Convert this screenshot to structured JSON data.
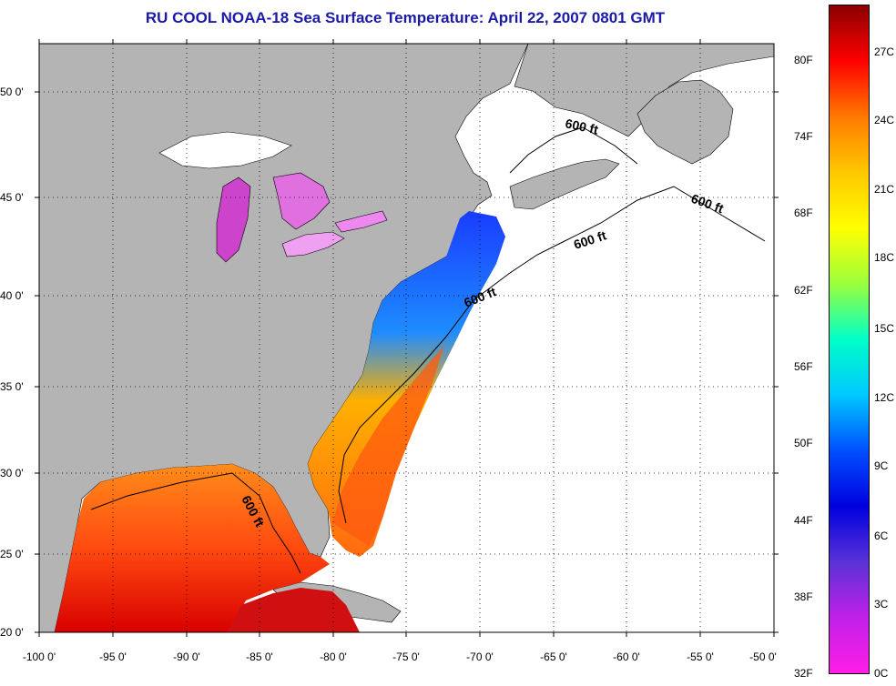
{
  "title": "RU COOL  NOAA-18  Sea Surface Temperature:  April 22, 2007 0801 GMT",
  "latitude_labels": [
    "50 0'",
    "45 0'",
    "40 0'",
    "35 0'",
    "30 0'",
    "25 0'",
    "20 0'"
  ],
  "longitude_labels": [
    "-100 0'",
    "-95 0'",
    "-90 0'",
    "-85 0'",
    "-80 0'",
    "-75 0'",
    "-70 0'",
    "-65 0'",
    "-60 0'",
    "-55 0'",
    "-50 0'"
  ],
  "depth_contour_labels": [
    "600 ft",
    "600 ft",
    "600 ft",
    "600 ft",
    "600 ft"
  ],
  "colorbar": {
    "fahrenheit_labels": [
      "80F",
      "74F",
      "68F",
      "62F",
      "56F",
      "50F",
      "44F",
      "38F",
      "32F"
    ],
    "celsius_labels": [
      "27C",
      "24C",
      "21C",
      "18C",
      "15C",
      "12C",
      "9C",
      "6C",
      "3C",
      "0C"
    ],
    "gradient_top_to_bottom": [
      "#8b0000",
      "#ff0000",
      "#ff7a00",
      "#ffc800",
      "#ffff00",
      "#9cff3c",
      "#00ffc8",
      "#00c8ff",
      "#0050ff",
      "#0000e0",
      "#5a32d6",
      "#c020e8",
      "#ff1ee6"
    ]
  },
  "colors": {
    "land": "#b4b4b4",
    "ocean_no_data": "#ffffff",
    "title_blue": "#1a1aa6"
  }
}
